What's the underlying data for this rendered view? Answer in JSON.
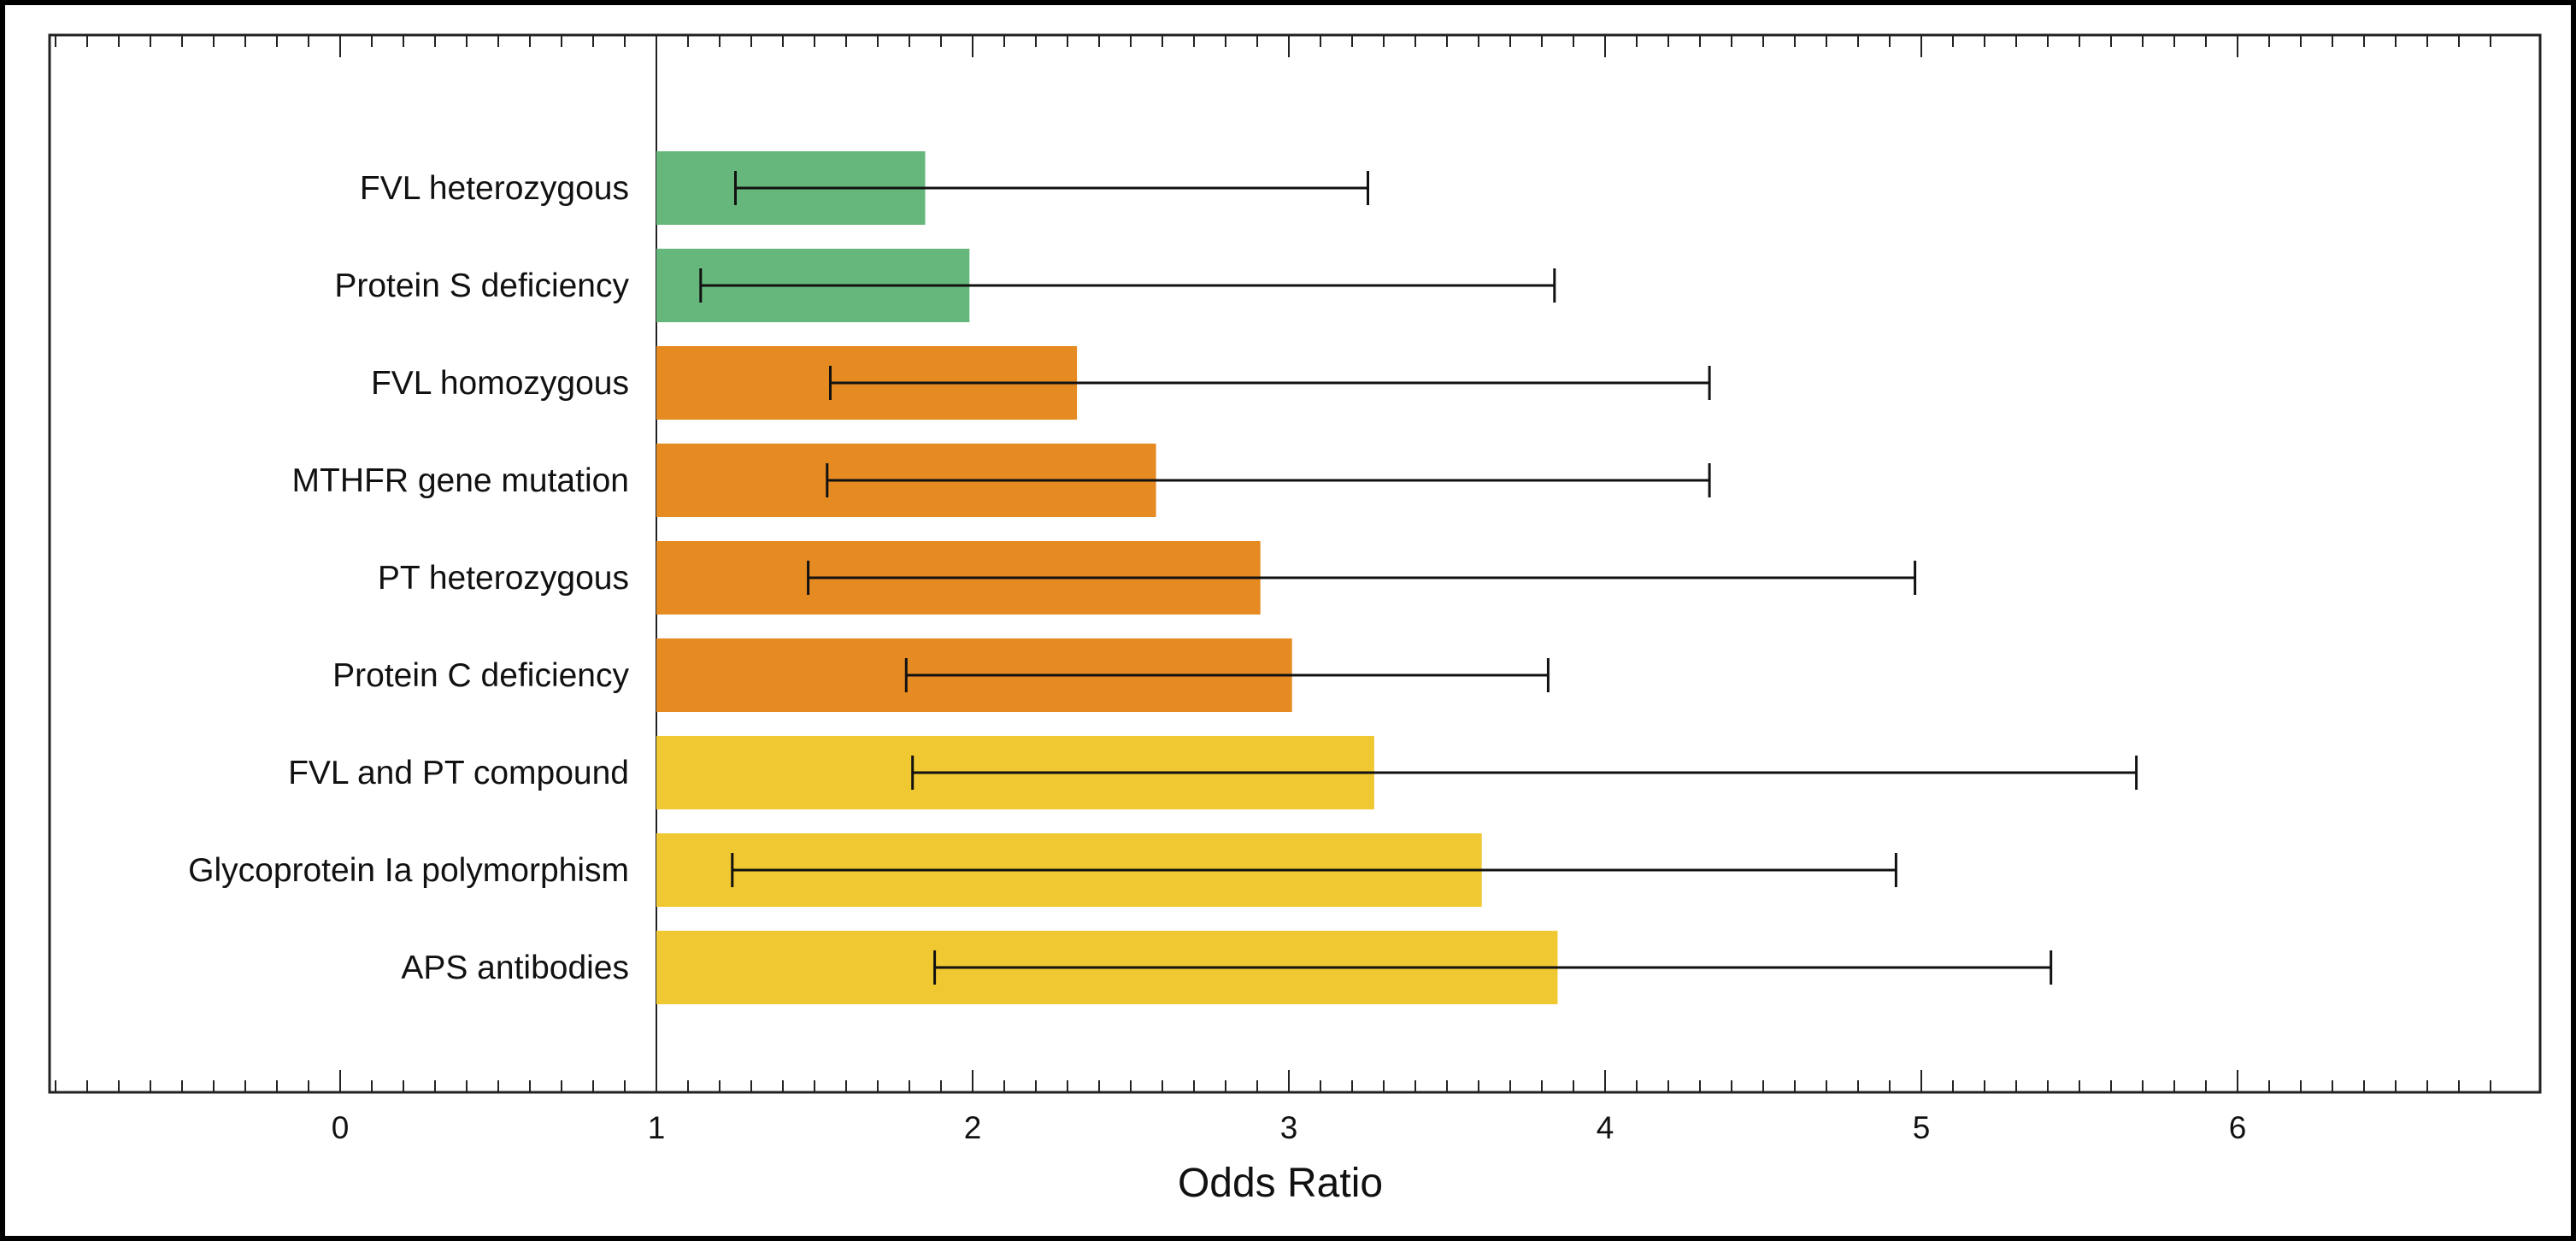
{
  "chart_data": {
    "type": "bar",
    "orientation": "horizontal",
    "title": "",
    "xlabel": "Odds Ratio",
    "ylabel": "",
    "xlim": [
      -1.0,
      6.8
    ],
    "baseline": 1,
    "x_ticks": [
      0,
      1,
      2,
      3,
      4,
      5,
      6
    ],
    "grid": false,
    "categories": [
      "FVL heterozygous",
      "Protein S deficiency",
      "FVL homozygous",
      "MTHFR gene mutation",
      "PT heterozygous",
      "Protein C deficiency",
      "FVL and PT compound",
      "Glycoprotein Ia polymorphism",
      "APS antibodies"
    ],
    "values": [
      1.85,
      1.99,
      2.33,
      2.58,
      2.91,
      3.01,
      3.27,
      3.61,
      3.85
    ],
    "ci_lower": [
      1.25,
      1.14,
      1.55,
      1.54,
      1.48,
      1.79,
      1.81,
      1.24,
      1.88
    ],
    "ci_upper": [
      3.25,
      3.84,
      4.33,
      4.33,
      4.98,
      3.82,
      5.68,
      4.92,
      5.41
    ],
    "bar_colors": [
      "#66b77b",
      "#66b77b",
      "#e68a22",
      "#e68a22",
      "#e68a22",
      "#e68a22",
      "#f0c832",
      "#f0c832",
      "#f0c832"
    ]
  }
}
